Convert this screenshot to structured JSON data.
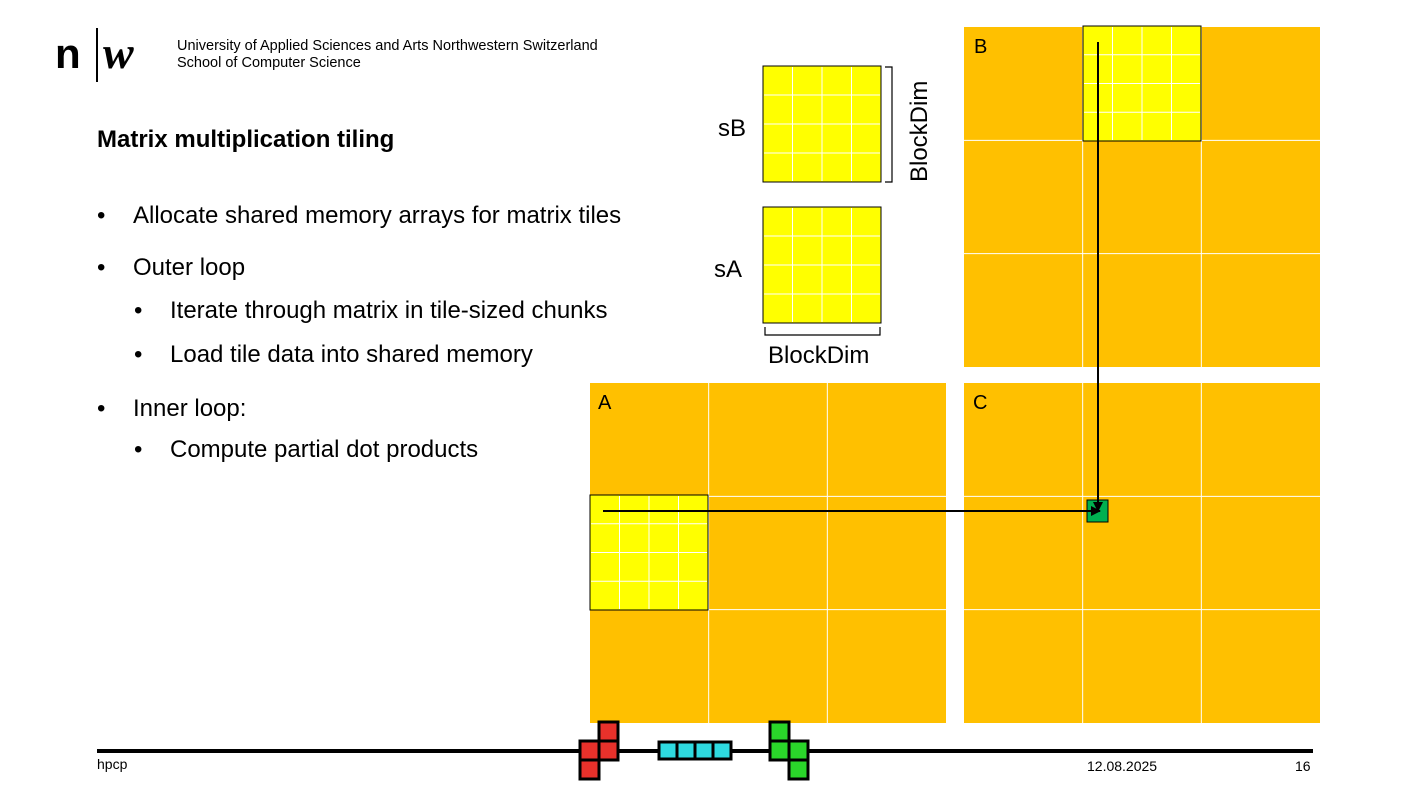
{
  "header": {
    "university_line1": "University of Applied Sciences and Arts Northwestern Switzerland",
    "university_line2": "School of Computer Science"
  },
  "slide": {
    "title": "Matrix multiplication tiling",
    "bullets": [
      {
        "level": 1,
        "text": "Allocate shared memory arrays for matrix tiles"
      },
      {
        "level": 1,
        "text": "Outer loop"
      },
      {
        "level": 2,
        "text": "Iterate through matrix in tile-sized chunks"
      },
      {
        "level": 2,
        "text": "Load tile data into shared memory"
      },
      {
        "level": 1,
        "text": "Inner loop:"
      },
      {
        "level": 2,
        "text": "Compute partial dot products"
      }
    ],
    "bullet_symbol": "•"
  },
  "diagram": {
    "matrix_a_label": "A",
    "matrix_b_label": "B",
    "matrix_c_label": "C",
    "shared_b_label": "sB",
    "shared_a_label": "sA",
    "blockdim_vertical_label": "BlockDim",
    "blockdim_horizontal_label": "BlockDim",
    "colors": {
      "matrix": "#FFC000",
      "tile": "#FFFF00",
      "result_cell": "#00B050",
      "gridline": "#ffffff"
    }
  },
  "footer": {
    "left": "hpcp",
    "date": "12.08.2025",
    "page": "16"
  }
}
